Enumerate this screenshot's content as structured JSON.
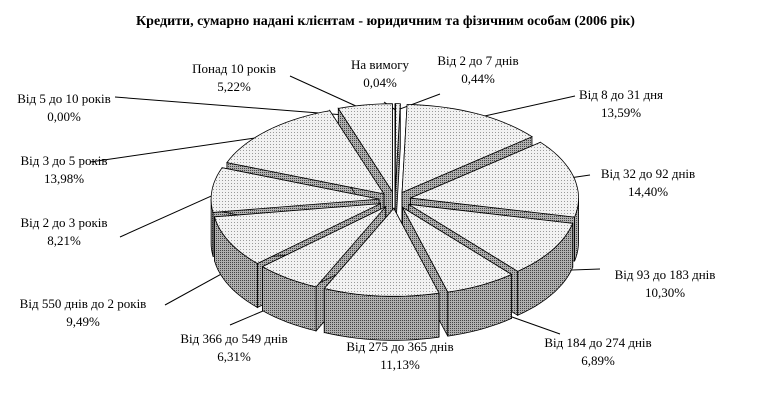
{
  "chart_data": {
    "type": "pie",
    "variant": "3d-exploded",
    "title": "Кредити, сумарно надані клієнтам - юридичним та фізичним особам (2006 рік)",
    "slices": [
      {
        "label": "На вимогу",
        "value_label": "0,04%",
        "value": 0.04
      },
      {
        "label": "Від 2 до 7 днів",
        "value_label": "0,44%",
        "value": 0.44
      },
      {
        "label": "Від 8  до 31 дня",
        "value_label": "13,59%",
        "value": 13.59
      },
      {
        "label": "Від 32 до 92 днів",
        "value_label": "14,40%",
        "value": 14.4
      },
      {
        "label": "Від 93 до 183 днів",
        "value_label": "10,30%",
        "value": 10.3
      },
      {
        "label": "Від 184 до 274 днів",
        "value_label": "6,89%",
        "value": 6.89
      },
      {
        "label": "Від 275 до 365 днів",
        "value_label": "11,13%",
        "value": 11.13
      },
      {
        "label": "Від 366 до 549 днів",
        "value_label": "6,31%",
        "value": 6.31
      },
      {
        "label": "Від 550 днів до 2 років",
        "value_label": "9,49%",
        "value": 9.49
      },
      {
        "label": "Від 2 до 3 років",
        "value_label": "8,21%",
        "value": 8.21
      },
      {
        "label": "Від 3 до 5 років",
        "value_label": "13,98%",
        "value": 13.98
      },
      {
        "label": "Від 5 до 10 років",
        "value_label": "0,00%",
        "value": 0.0
      },
      {
        "label": "Понад 10 років",
        "value_label": "5,22%",
        "value": 5.22
      }
    ],
    "colors": {
      "top": "#e6e6e6",
      "side": "#8a8a8a",
      "outline": "#000000"
    },
    "legend": "none"
  }
}
